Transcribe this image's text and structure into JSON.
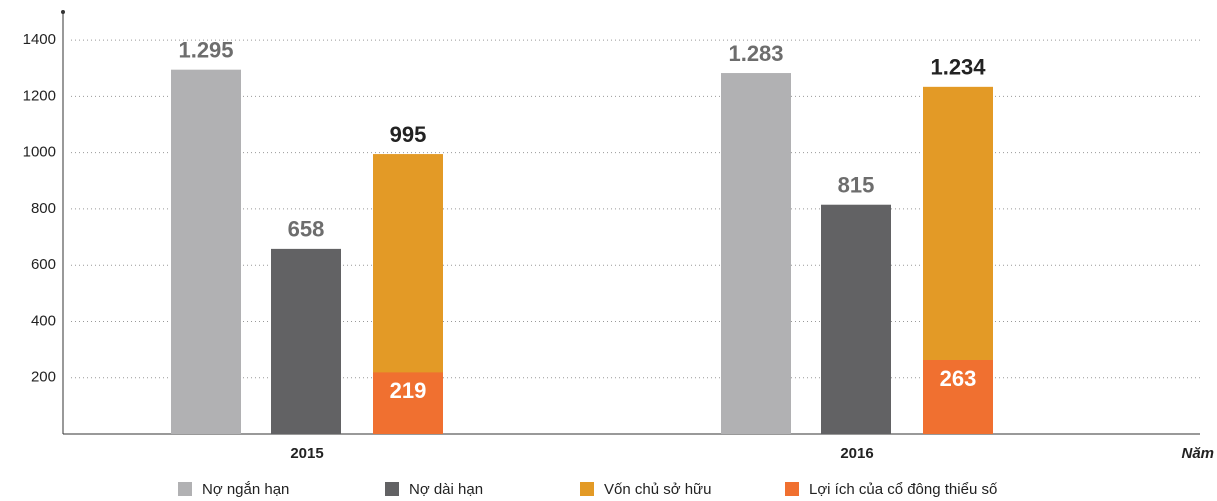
{
  "chart_data": {
    "type": "bar",
    "categories": [
      "2015",
      "2016"
    ],
    "x_label": "Năm",
    "series": [
      {
        "name": "Nợ ngắn hạn",
        "color": "#b1b1b3",
        "values": [
          1295,
          1283
        ],
        "value_labels": [
          "1.295",
          "1.283"
        ]
      },
      {
        "name": "Nợ dài hạn",
        "color": "#626264",
        "values": [
          658,
          815
        ]
      },
      {
        "name": "Vốn chủ sở hữu",
        "color": "#e39a26",
        "values": [
          995,
          1234
        ],
        "value_labels": [
          "995",
          "1.234"
        ]
      },
      {
        "name": "Lợi ích của cổ đông thiểu số",
        "color": "#f07030",
        "values": [
          219,
          263
        ]
      }
    ],
    "ylim": [
      0,
      1500
    ],
    "yticks": [
      200,
      400,
      600,
      800,
      1000,
      1200,
      1400
    ],
    "grid": true,
    "legend": "bottom"
  }
}
